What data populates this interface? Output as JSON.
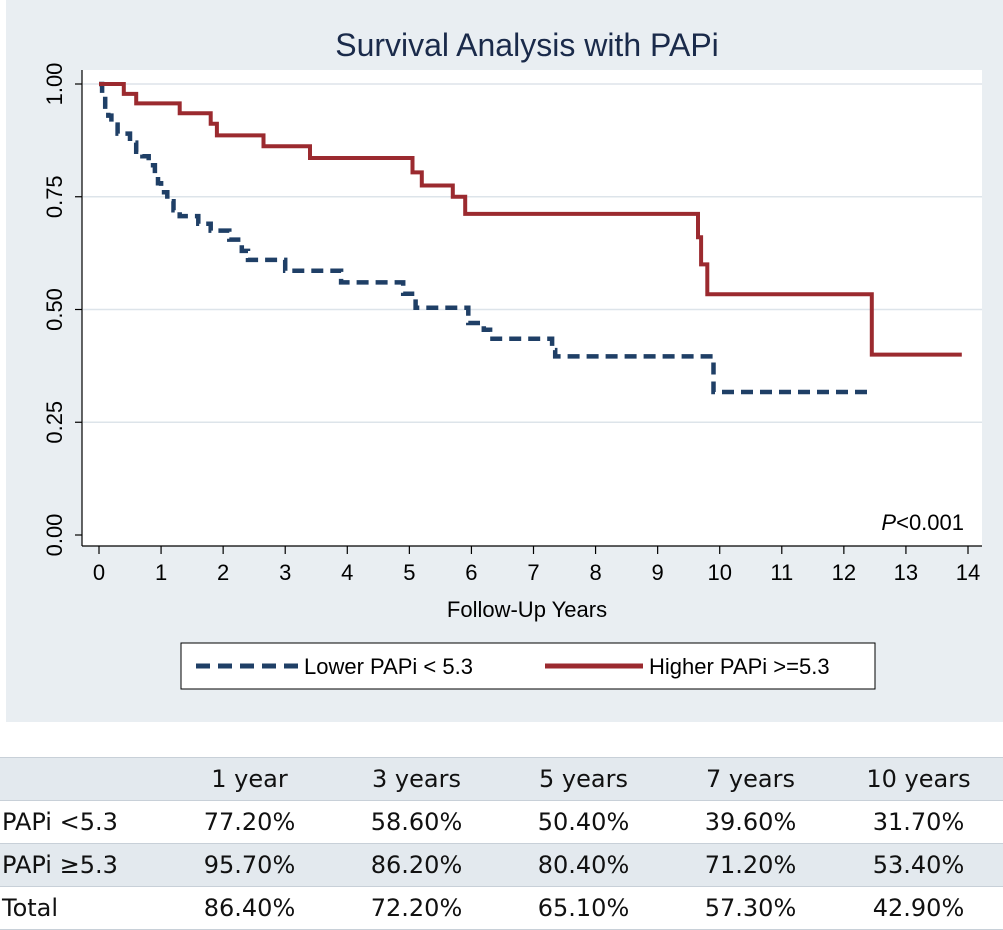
{
  "chart_data": {
    "type": "line",
    "subtype": "kaplan-meier step",
    "title": "Survival Analysis with PAPi",
    "xlabel": "Follow-Up Years",
    "ylabel": "",
    "xlim": [
      0,
      14
    ],
    "ylim": [
      0,
      1
    ],
    "x_ticks": [
      "0",
      "1",
      "2",
      "3",
      "4",
      "5",
      "6",
      "7",
      "8",
      "9",
      "10",
      "11",
      "12",
      "13",
      "14"
    ],
    "y_ticks": [
      "0.00",
      "0.25",
      "0.50",
      "0.75",
      "1.00"
    ],
    "grid": true,
    "annotation": {
      "italic": "P",
      "rest": "<0.001"
    },
    "legend_position": "bottom",
    "series": [
      {
        "name": "Lower PAPi < 5.3",
        "color": "#1f3f66",
        "style": "dashed",
        "x": [
          0,
          0.05,
          0.1,
          0.15,
          0.2,
          0.3,
          0.5,
          0.6,
          0.7,
          0.8,
          0.9,
          0.95,
          1.0,
          1.1,
          1.2,
          1.3,
          1.6,
          1.8,
          2.1,
          2.3,
          2.4,
          3.0,
          3.9,
          4.9,
          5.1,
          5.95,
          6.2,
          6.3,
          7.3,
          7.35,
          9.9,
          9.95,
          12.4
        ],
        "y": [
          1.0,
          0.98,
          0.95,
          0.93,
          0.91,
          0.89,
          0.87,
          0.85,
          0.84,
          0.82,
          0.8,
          0.78,
          0.76,
          0.74,
          0.72,
          0.707,
          0.69,
          0.675,
          0.655,
          0.63,
          0.61,
          0.586,
          0.56,
          0.535,
          0.504,
          0.47,
          0.455,
          0.435,
          0.41,
          0.396,
          0.317,
          0.317,
          0.317
        ]
      },
      {
        "name": "Higher PAPi >=5.3",
        "color": "#9b2a2f",
        "style": "solid",
        "x": [
          0,
          0.4,
          0.6,
          1.3,
          1.8,
          1.9,
          2.65,
          3.4,
          5.05,
          5.2,
          5.7,
          5.9,
          9.65,
          9.7,
          9.8,
          9.9,
          12.45,
          13.9
        ],
        "y": [
          1.0,
          0.978,
          0.957,
          0.935,
          0.912,
          0.886,
          0.862,
          0.836,
          0.804,
          0.775,
          0.75,
          0.712,
          0.66,
          0.6,
          0.534,
          0.534,
          0.4,
          0.4
        ]
      }
    ]
  },
  "table": {
    "headers": [
      "",
      "1 year",
      "3 years",
      "5 years",
      "7 years",
      "10 years"
    ],
    "rows": [
      {
        "label": "PAPi <5.3",
        "values": [
          "77.20%",
          "58.60%",
          "50.40%",
          "39.60%",
          "31.70%"
        ]
      },
      {
        "label": "PAPi ≥5.3",
        "values": [
          "95.70%",
          "86.20%",
          "80.40%",
          "71.20%",
          "53.40%"
        ]
      },
      {
        "label": "Total",
        "values": [
          "86.40%",
          "72.20%",
          "65.10%",
          "57.30%",
          "42.90%"
        ]
      }
    ]
  }
}
